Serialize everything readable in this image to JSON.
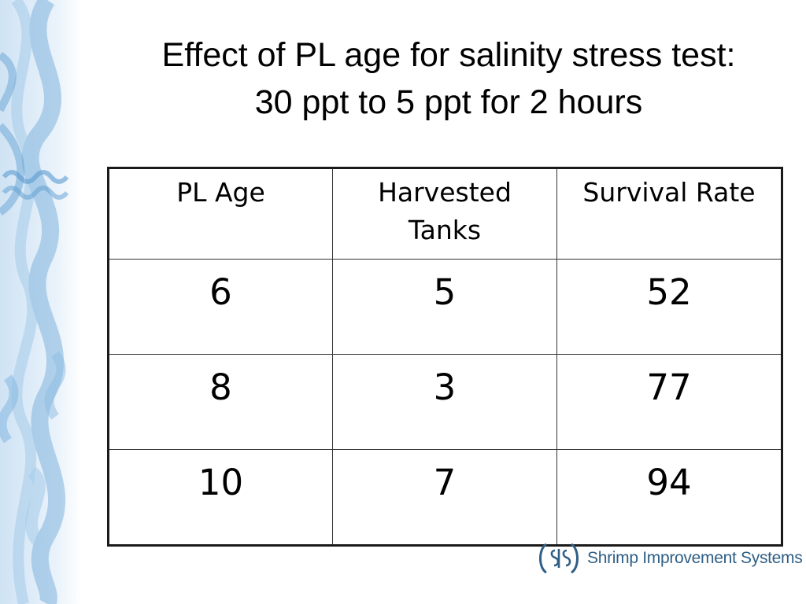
{
  "title": {
    "line1": "Effect of PL age for salinity stress test:",
    "line2": "30 ppt to 5 ppt for 2 hours"
  },
  "table": {
    "headers": [
      "PL Age",
      "Harvested Tanks",
      "Survival Rate"
    ],
    "rows": [
      [
        "6",
        "5",
        "52"
      ],
      [
        "8",
        "3",
        "77"
      ],
      [
        "10",
        "7",
        "94"
      ]
    ]
  },
  "logo": {
    "text": "Shrimp Improvement Systems",
    "color": "#2f5f86"
  },
  "decoration": {
    "strip_color": "#5b9bd0",
    "strip_light": "#dcebf7"
  }
}
